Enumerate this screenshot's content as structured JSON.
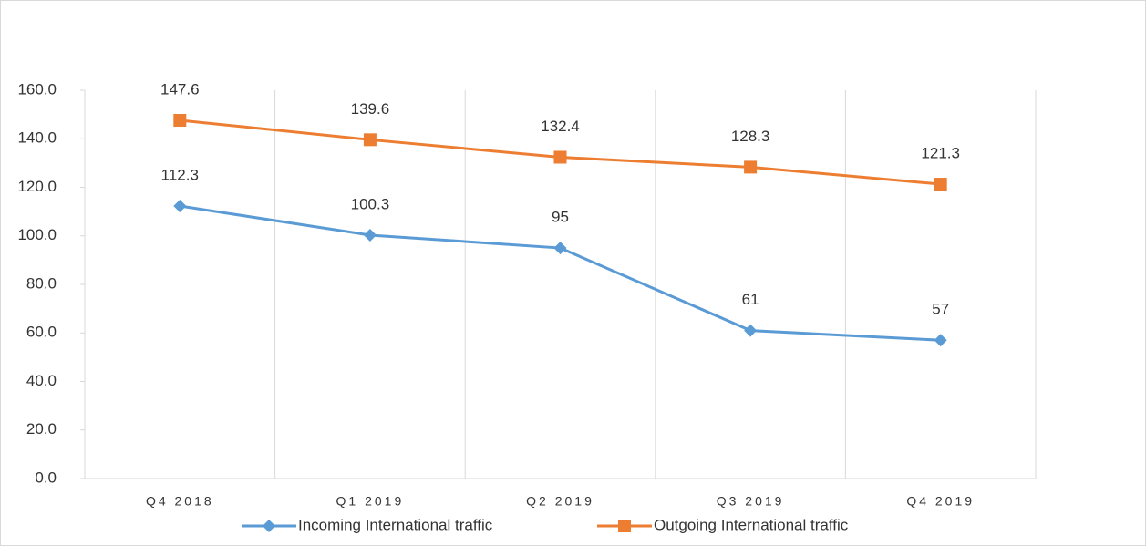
{
  "chart_data": {
    "type": "line",
    "categories": [
      "Q4 2018",
      "Q1 2019",
      "Q2 2019",
      "Q3 2019",
      "Q4 2019"
    ],
    "series": [
      {
        "name": "Incoming International traffic",
        "color": "#5b9bd5",
        "marker": "diamond",
        "values": [
          112.3,
          100.3,
          95,
          61,
          57
        ]
      },
      {
        "name": "Outgoing International traffic",
        "color": "#ed7d31",
        "marker": "square",
        "values": [
          147.6,
          139.6,
          132.4,
          128.3,
          121.3
        ]
      }
    ],
    "ylim": [
      0,
      160
    ],
    "yticks": [
      {
        "value": 0,
        "label": "0.0"
      },
      {
        "value": 20,
        "label": "20.0"
      },
      {
        "value": 40,
        "label": "40.0"
      },
      {
        "value": 60,
        "label": "60.0"
      },
      {
        "value": 80,
        "label": "80.0"
      },
      {
        "value": 100,
        "label": "100.0"
      },
      {
        "value": 120,
        "label": "120.0"
      },
      {
        "value": 140,
        "label": "140.0"
      },
      {
        "value": 160,
        "label": "160.0"
      }
    ],
    "grid": "x",
    "legend": "bottom"
  }
}
